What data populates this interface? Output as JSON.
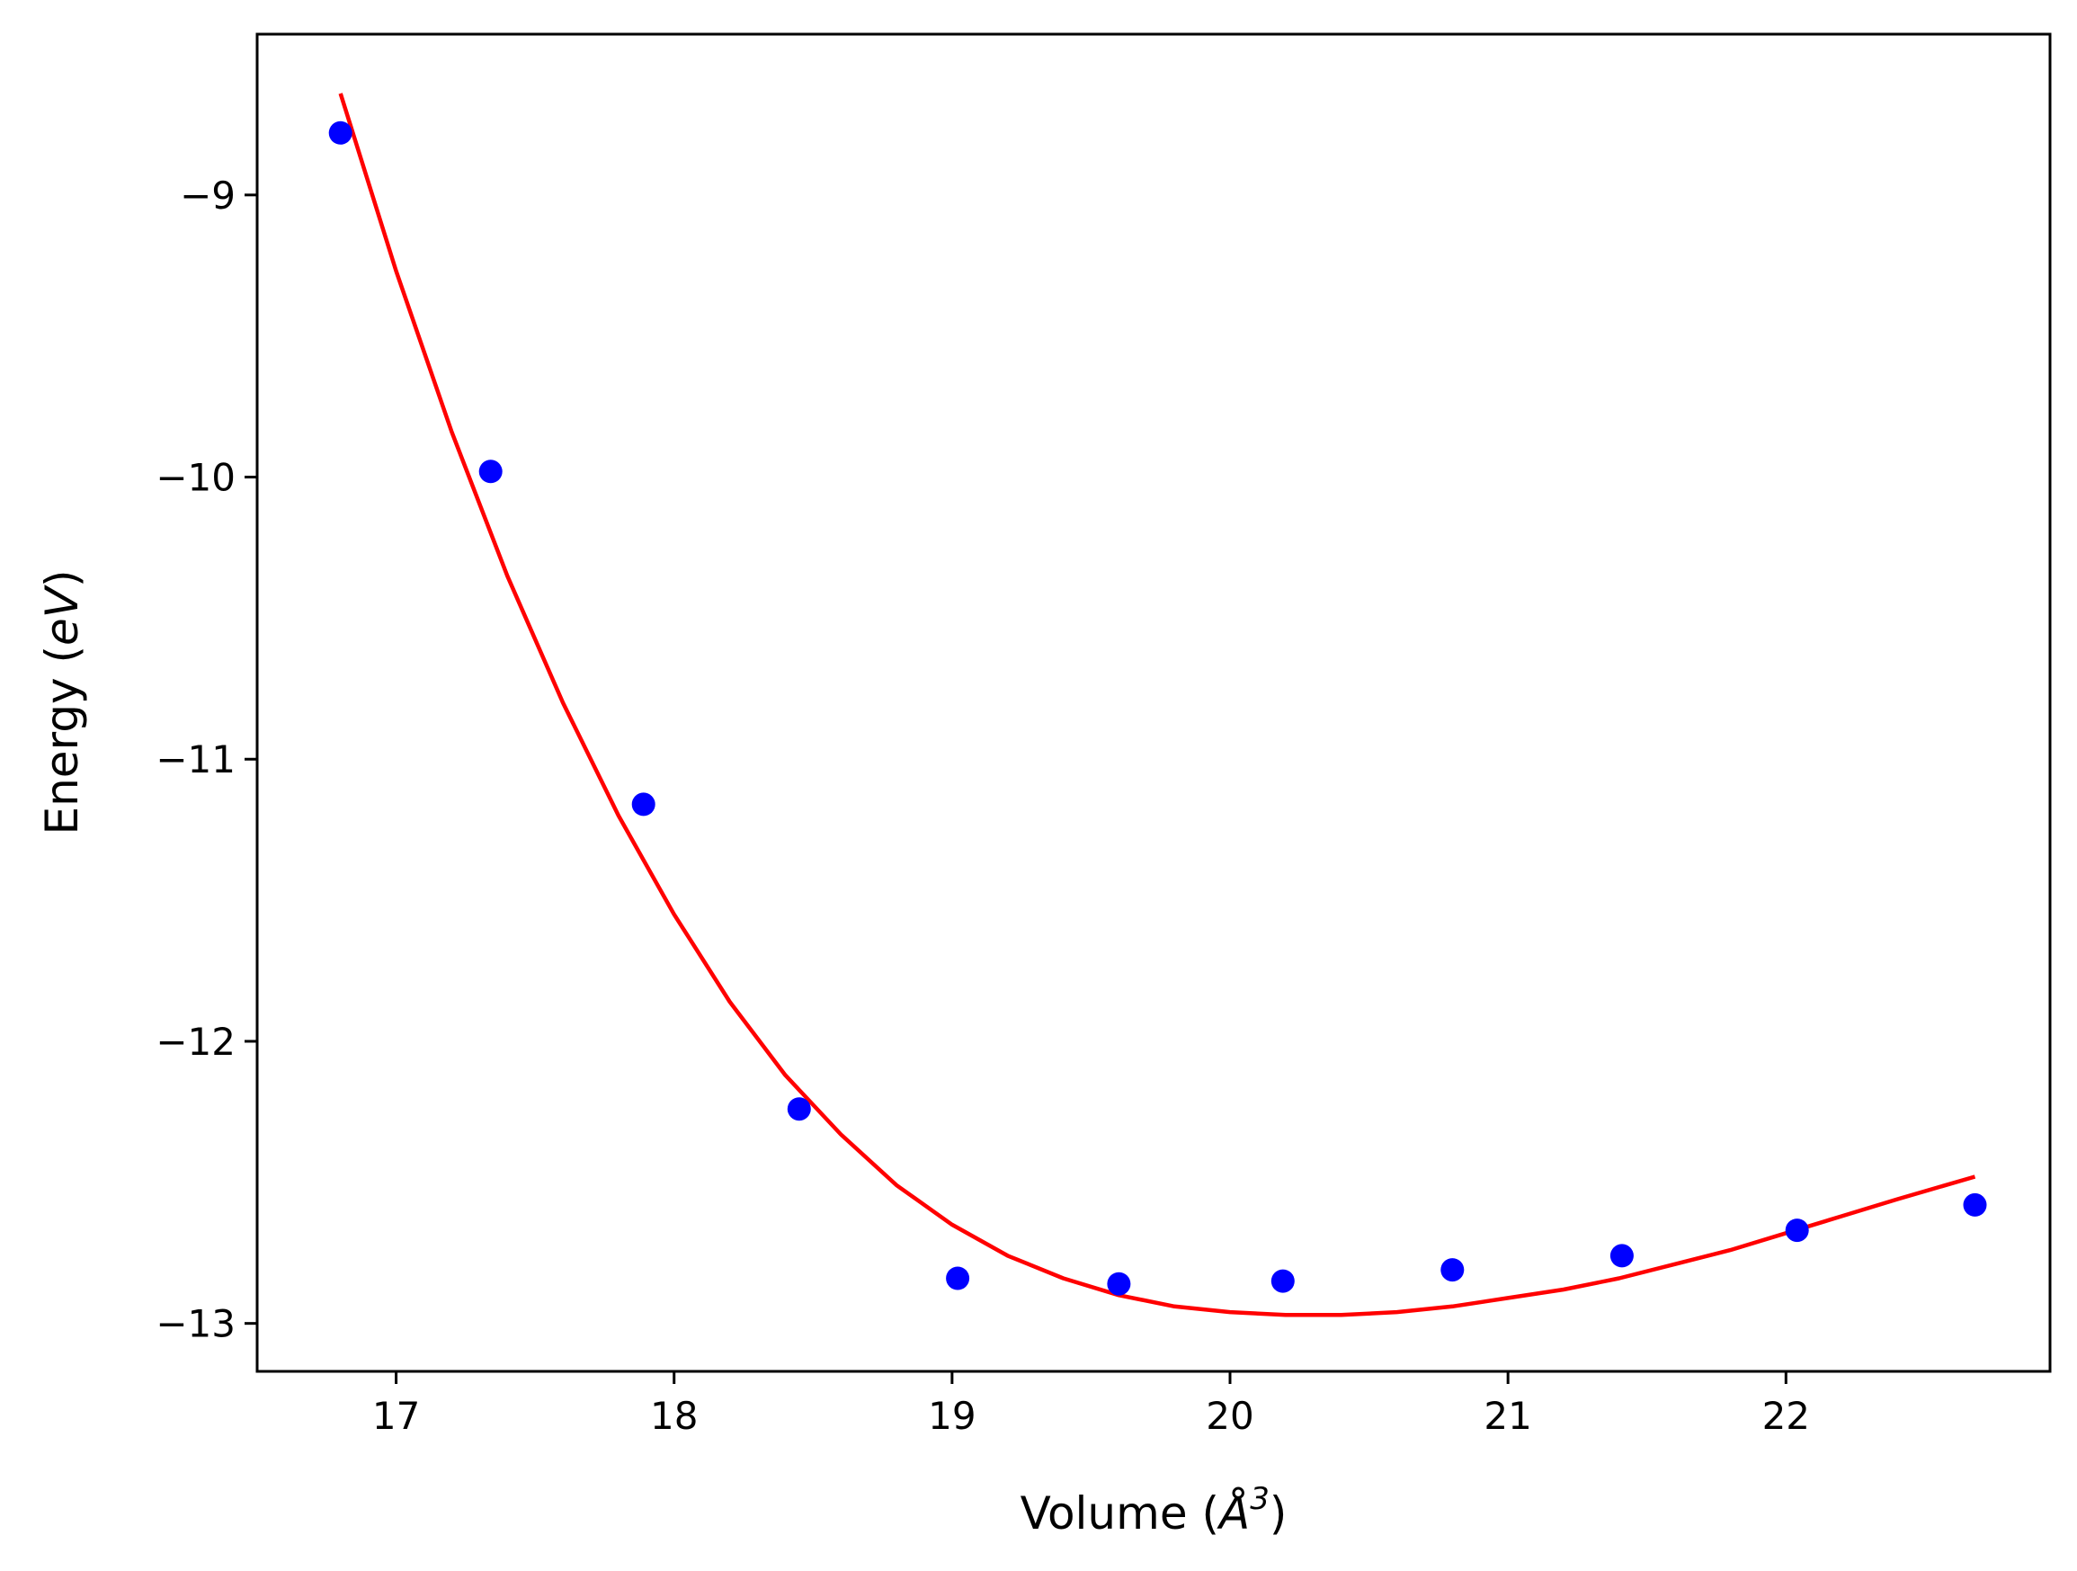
{
  "chart_data": {
    "type": "scatter",
    "xlabel": {
      "prefix": "Volume (",
      "symbol": "Å",
      "exponent": "3",
      "suffix": ")"
    },
    "ylabel": {
      "prefix": "Energy (",
      "unit": "eV",
      "suffix": ")"
    },
    "xlim": [
      16.5,
      22.95
    ],
    "ylim": [
      -13.17,
      -8.43
    ],
    "xticks": [
      17,
      18,
      19,
      20,
      21,
      22
    ],
    "yticks": [
      -9,
      -10,
      -11,
      -12,
      -13
    ],
    "xtick_labels": [
      "17",
      "18",
      "19",
      "20",
      "21",
      "22"
    ],
    "ytick_labels": [
      "−9",
      "−10",
      "−11",
      "−12",
      "−13"
    ],
    "grid": false,
    "series": [
      {
        "kind": "points",
        "color": "#0000ff",
        "x": [
          16.8,
          17.34,
          17.89,
          18.45,
          19.02,
          19.6,
          20.19,
          20.8,
          21.41,
          22.04,
          22.68
        ],
        "y": [
          -8.78,
          -9.98,
          -11.16,
          -12.24,
          -12.84,
          -12.86,
          -12.85,
          -12.81,
          -12.76,
          -12.67,
          -12.58
        ]
      },
      {
        "kind": "fit-curve",
        "color": "#ff0000",
        "x": [
          16.8,
          17.0,
          17.2,
          17.4,
          17.6,
          17.8,
          18.0,
          18.2,
          18.4,
          18.6,
          18.8,
          19.0,
          19.2,
          19.4,
          19.6,
          19.8,
          20.0,
          20.2,
          20.4,
          20.6,
          20.8,
          21.0,
          21.2,
          21.4,
          21.6,
          21.8,
          22.0,
          22.2,
          22.4,
          22.68
        ],
        "y": [
          -8.64,
          -9.27,
          -9.84,
          -10.35,
          -10.8,
          -11.2,
          -11.55,
          -11.86,
          -12.12,
          -12.33,
          -12.51,
          -12.65,
          -12.76,
          -12.84,
          -12.9,
          -12.94,
          -12.96,
          -12.97,
          -12.97,
          -12.96,
          -12.94,
          -12.91,
          -12.88,
          -12.84,
          -12.79,
          -12.74,
          -12.68,
          -12.62,
          -12.56,
          -12.48
        ]
      }
    ]
  }
}
